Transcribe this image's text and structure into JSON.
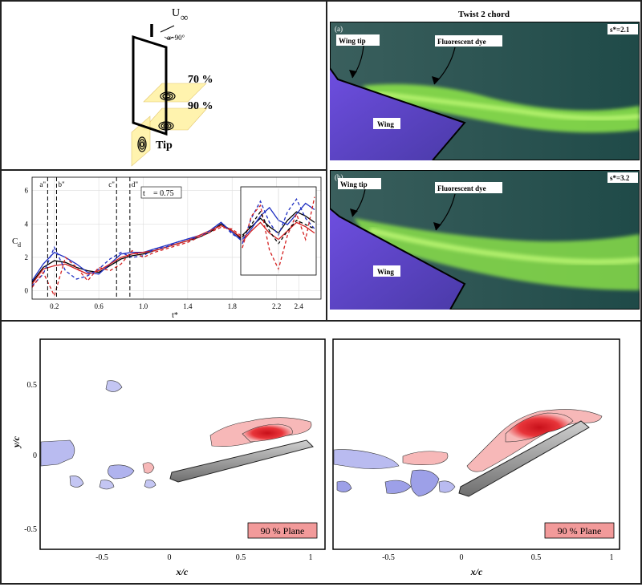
{
  "schematic": {
    "freestream_label": "U",
    "freestream_sub": "∞",
    "alpha_label": "α~90°",
    "plane_labels": [
      "70 %",
      "90 %",
      "Tip"
    ]
  },
  "chart_data": [
    {
      "type": "line",
      "ylabel": "C",
      "ylabel_sub": "d",
      "xlabel": "t*",
      "x_ticks": [
        "0.2",
        "0.6",
        "1.0",
        "1.4",
        "1.8",
        "2.2",
        "2.4"
      ],
      "y_ticks": [
        "0",
        "2",
        "4",
        "6"
      ],
      "xlim": [
        0,
        2.6
      ],
      "ylim": [
        -0.5,
        6.8
      ],
      "markers": [
        "a\"",
        "b\"",
        "c\"",
        "d\""
      ],
      "tb_label": "t",
      "tb_value": "= 0.75",
      "series": [
        {
          "color": "#000000",
          "dash": "solid",
          "x": [
            0,
            0.1,
            0.2,
            0.3,
            0.4,
            0.5,
            0.6,
            0.7,
            0.8,
            0.9,
            1.0,
            1.1,
            1.2,
            1.3,
            1.4,
            1.5,
            1.6,
            1.7,
            1.8,
            1.9,
            2.0
          ],
          "y": [
            0.5,
            1.4,
            1.8,
            1.7,
            1.4,
            1.2,
            1.1,
            1.5,
            1.9,
            2.1,
            2.2,
            2.4,
            2.6,
            2.8,
            3.0,
            3.2,
            3.5,
            4.0,
            3.6,
            3.0,
            2.6
          ]
        },
        {
          "color": "#1f2fc2",
          "dash": "solid",
          "x": [
            0,
            0.1,
            0.2,
            0.3,
            0.4,
            0.5,
            0.6,
            0.7,
            0.8,
            0.9,
            1.0,
            1.1,
            1.2,
            1.3,
            1.4,
            1.5,
            1.6,
            1.7,
            1.8,
            1.9,
            2.0
          ],
          "y": [
            0.6,
            1.6,
            2.3,
            2.0,
            1.6,
            1.1,
            1.0,
            1.6,
            2.2,
            2.3,
            2.3,
            2.5,
            2.7,
            2.9,
            3.1,
            3.3,
            3.6,
            4.1,
            3.5,
            2.9,
            2.5
          ]
        },
        {
          "color": "#d42020",
          "dash": "solid",
          "x": [
            0,
            0.1,
            0.2,
            0.3,
            0.4,
            0.5,
            0.6,
            0.7,
            0.8,
            0.9,
            1.0,
            1.1,
            1.2,
            1.3,
            1.4,
            1.5,
            1.6,
            1.7,
            1.8,
            1.9,
            2.0
          ],
          "y": [
            0.4,
            1.3,
            1.5,
            1.6,
            1.3,
            1.0,
            1.2,
            1.6,
            2.0,
            2.2,
            2.3,
            2.4,
            2.6,
            2.8,
            3.0,
            3.3,
            3.6,
            3.9,
            3.6,
            3.1,
            2.7
          ]
        },
        {
          "color": "#1f2fc2",
          "dash": "dashed",
          "x": [
            0,
            0.1,
            0.2,
            0.3,
            0.4,
            0.5,
            0.6,
            0.7,
            0.8,
            0.9,
            1.0,
            1.1,
            1.2,
            1.3,
            1.4,
            1.5,
            1.6,
            1.7,
            1.8,
            1.9,
            2.0
          ],
          "y": [
            0.3,
            1.0,
            2.6,
            1.2,
            0.7,
            0.9,
            1.3,
            1.9,
            2.3,
            2.0,
            2.1,
            2.5,
            2.6,
            2.9,
            3.1,
            3.2,
            3.6,
            4.1,
            3.4,
            3.0,
            2.5
          ]
        },
        {
          "color": "#d42020",
          "dash": "dashed",
          "x": [
            0,
            0.1,
            0.2,
            0.3,
            0.4,
            0.5,
            0.6,
            0.7,
            0.8,
            0.9,
            1.0,
            1.1,
            1.2,
            1.3,
            1.4,
            1.5,
            1.6,
            1.7,
            1.8,
            1.9,
            2.0
          ],
          "y": [
            0.2,
            1.1,
            -0.3,
            2.0,
            1.4,
            0.6,
            1.4,
            1.2,
            1.6,
            2.4,
            2.0,
            2.3,
            2.5,
            2.7,
            2.9,
            3.2,
            3.5,
            3.8,
            3.7,
            3.2,
            2.8
          ]
        }
      ],
      "inset_series": [
        {
          "color": "#000000",
          "dash": "solid",
          "y": [
            2.8,
            3.2,
            3.6,
            3.2,
            2.9,
            3.5,
            3.9,
            3.7,
            3.4
          ]
        },
        {
          "color": "#1f2fc2",
          "dash": "solid",
          "y": [
            2.6,
            3.1,
            3.7,
            4.1,
            3.5,
            3.3,
            3.8,
            4.3,
            4.0
          ]
        },
        {
          "color": "#d42020",
          "dash": "solid",
          "y": [
            2.5,
            3.0,
            3.4,
            2.9,
            2.6,
            3.0,
            3.4,
            3.2,
            2.9
          ]
        },
        {
          "color": "#1f2fc2",
          "dash": "dashed",
          "y": [
            2.4,
            3.6,
            4.4,
            3.4,
            2.8,
            3.9,
            4.5,
            3.6,
            3.1
          ]
        },
        {
          "color": "#d42020",
          "dash": "dashed",
          "y": [
            2.2,
            3.7,
            4.2,
            2.1,
            1.2,
            2.8,
            3.8,
            2.6,
            4.6
          ]
        },
        {
          "color": "#000000",
          "dash": "dashed",
          "y": [
            2.7,
            3.3,
            3.9,
            3.0,
            2.4,
            3.0,
            3.5,
            3.3,
            3.1
          ]
        }
      ]
    },
    {
      "type": "contour",
      "xlabel": "x/c",
      "ylabel": "y/c",
      "x_ticks": [
        "-0.5",
        "0",
        "0.5",
        "1"
      ],
      "y_ticks": [
        "0.5",
        "0",
        "-0.5"
      ],
      "xlim": [
        -0.9,
        1.05
      ],
      "ylim": [
        -0.6,
        0.75
      ],
      "plane_label": "90 % Plane"
    },
    {
      "type": "contour",
      "xlabel": "x/c",
      "x_ticks": [
        "-0.5",
        "0",
        "0.5",
        "1"
      ],
      "xlim": [
        -0.9,
        1.05
      ],
      "ylim": [
        -0.6,
        0.75
      ],
      "plane_label": "90 % Plane"
    }
  ],
  "photos": {
    "title": "Twist 2 chord",
    "a": {
      "panel": "(a)",
      "s_label": "s*=2.1",
      "wing_tip": "Wing tip",
      "dye": "Fluorescent dye",
      "wing": "Wing"
    },
    "b": {
      "panel": "(b)",
      "s_label": "s*=3.2",
      "wing_tip": "Wing tip",
      "dye": "Fluorescent dye",
      "wing": "Wing"
    }
  },
  "colors": {
    "positive": "#e8353a",
    "negative": "#8c8fe0",
    "dye": "#8fe84a",
    "water": "#2d5a56"
  }
}
